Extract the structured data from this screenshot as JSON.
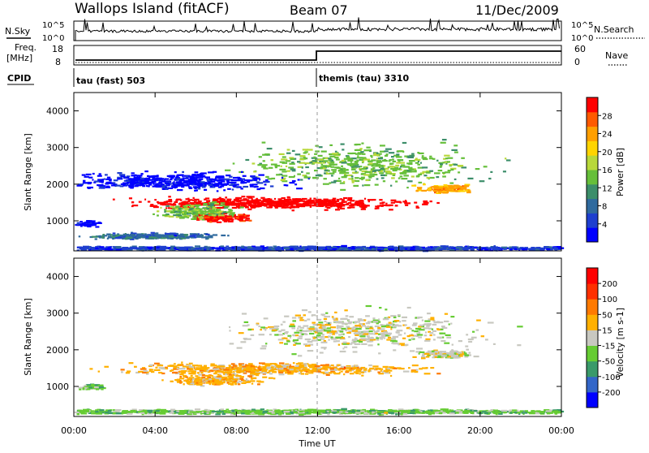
{
  "header": {
    "station": "Wallops Island (fitACF)",
    "beam": "Beam 07",
    "date": "11/Dec/2009"
  },
  "top_panels": {
    "nsky_label": "N.Sky",
    "nsky_ticks": [
      "10^5",
      "10^0"
    ],
    "nsearch_label": "N.Search",
    "nsearch_ticks": [
      "10^5",
      "10^0"
    ],
    "freq_label_top": "Freq.",
    "freq_label_bottom": "[MHz]",
    "freq_ticks": [
      "18",
      "8"
    ],
    "nave_label": "Nave",
    "nave_ticks": [
      "60",
      "0"
    ],
    "cpid_label": "CPID",
    "cpid_segments": [
      {
        "label": "tau (fast) 503",
        "start_hour": 0
      },
      {
        "label": "themis (tau) 3310",
        "start_hour": 12
      }
    ]
  },
  "chart_data": [
    {
      "type": "heatmap",
      "name": "power",
      "ylabel": "Slant Range [km]",
      "yticks": [
        "4000",
        "3000",
        "2000",
        "1000"
      ],
      "ytick_values": [
        4000,
        3000,
        2000,
        1000
      ],
      "ylim": [
        180,
        4500
      ],
      "xlim": [
        0,
        24
      ],
      "colorbar_label": "Power [dB]",
      "colorbar_ticks": [
        "28",
        "24",
        "20",
        "16",
        "12",
        "8",
        "4"
      ],
      "colorbar_colors": [
        "#0000ff",
        "#1e3fcf",
        "#2f6a9e",
        "#3c8e6a",
        "#66bf3a",
        "#b8d83a",
        "#ffd400",
        "#ff9f00",
        "#ff5a00",
        "#ff0000"
      ],
      "regions": [
        {
          "t": [
            9.6,
            8.7
          ],
          "r": [
            1500,
            200
          ],
          "level": 10
        },
        {
          "t": [
            14.0,
            7.5
          ],
          "r": [
            2550,
            700
          ],
          "level": 4
        },
        {
          "t": [
            18.2,
            1.8
          ],
          "r": [
            1900,
            150
          ],
          "level": 7
        },
        {
          "t": [
            7.1,
            2.0
          ],
          "r": [
            1120,
            140
          ],
          "level": 9
        },
        {
          "t": [
            6.0,
            2.5
          ],
          "r": [
            1300,
            250
          ],
          "level": 4
        },
        {
          "t": [
            0.6,
            0.7
          ],
          "r": [
            950,
            100
          ],
          "level": 0
        },
        {
          "t": [
            4.8,
            7.0
          ],
          "r": [
            2100,
            300
          ],
          "level": 0
        },
        {
          "t": [
            3.8,
            4.0
          ],
          "r": [
            600,
            100
          ],
          "level": 2
        },
        {
          "t": [
            12.0,
            24.0
          ],
          "r": [
            270,
            70
          ],
          "level": 1
        }
      ]
    },
    {
      "type": "heatmap",
      "name": "velocity",
      "ylabel": "Slant Range [km]",
      "yticks": [
        "4000",
        "3000",
        "2000",
        "1000"
      ],
      "ytick_values": [
        4000,
        3000,
        2000,
        1000
      ],
      "ylim": [
        180,
        4500
      ],
      "xlim": [
        0,
        24
      ],
      "xlabel": "Time UT",
      "xticks": [
        "00:00",
        "04:00",
        "08:00",
        "12:00",
        "16:00",
        "20:00",
        "00:00"
      ],
      "xtick_values": [
        0,
        4,
        8,
        12,
        16,
        20,
        24
      ],
      "colorbar_label": "Velocity [m s-1]",
      "colorbar_ticks": [
        "200",
        "100",
        "50",
        "15",
        "-15",
        "-50",
        "-100",
        "-200"
      ],
      "colorbar_colors": [
        "#0000ff",
        "#3366c8",
        "#3a9a6a",
        "#66cc33",
        "#c8c8c0",
        "#ffb000",
        "#ff7a00",
        "#ff3000",
        "#ff0000"
      ],
      "regions": [
        {
          "t": [
            9.6,
            8.7
          ],
          "r": [
            1500,
            200
          ],
          "level": 5
        },
        {
          "t": [
            14.0,
            7.5
          ],
          "r": [
            2550,
            700
          ],
          "level": 4
        },
        {
          "t": [
            18.2,
            1.8
          ],
          "r": [
            1900,
            150
          ],
          "level": 4
        },
        {
          "t": [
            7.0,
            3.0
          ],
          "r": [
            1200,
            200
          ],
          "level": 5
        },
        {
          "t": [
            0.8,
            0.8
          ],
          "r": [
            1000,
            80
          ],
          "level": 3
        },
        {
          "t": [
            12.0,
            24.0
          ],
          "r": [
            330,
            80
          ],
          "level": 3
        }
      ]
    }
  ]
}
